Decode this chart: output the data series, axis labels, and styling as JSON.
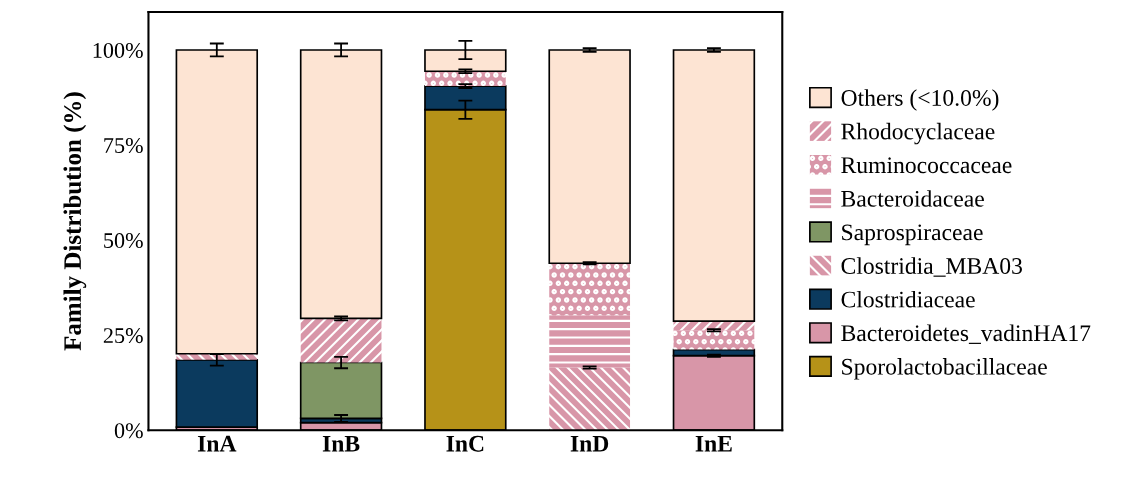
{
  "chart_data": {
    "type": "bar",
    "stacked": true,
    "ylabel": "Family Distribution (%)",
    "categories": [
      "InA",
      "InB",
      "InC",
      "InD",
      "InE"
    ],
    "ylim": [
      0,
      110
    ],
    "yticks": [
      {
        "value": 0,
        "label": "0%"
      },
      {
        "value": 25,
        "label": "25%"
      },
      {
        "value": 50,
        "label": "50%"
      },
      {
        "value": 75,
        "label": "75%"
      },
      {
        "value": 100,
        "label": "100%"
      }
    ],
    "grid": false,
    "legend": "right",
    "series": [
      {
        "name": "Sporolactobacillaceae",
        "color": "#b69218",
        "values": [
          null,
          null,
          84.3,
          null,
          null
        ],
        "errors": [
          null,
          null,
          2.4,
          null,
          null
        ]
      },
      {
        "name": "Bacteroidetes_vadinHA17",
        "color": "#d896a8",
        "values": [
          0.8,
          2.0,
          null,
          null,
          19.6
        ],
        "errors": [
          null,
          null,
          null,
          null,
          0.3
        ]
      },
      {
        "name": "Clostridiaceae",
        "color": "#0b3a5e",
        "values": [
          17.7,
          1.1,
          6.2,
          null,
          1.6
        ],
        "errors": [
          1.5,
          0.9,
          0.5,
          null,
          null
        ]
      },
      {
        "name": "Clostridia_MBA03",
        "color": "#d896a8",
        "values": [
          1.6,
          null,
          null,
          16.5,
          null
        ],
        "errors": [
          null,
          null,
          null,
          0.3,
          null
        ]
      },
      {
        "name": "Saprospiraceae",
        "color": "#7f9664",
        "values": [
          null,
          14.7,
          null,
          null,
          null
        ],
        "errors": [
          null,
          1.5,
          null,
          null,
          null
        ]
      },
      {
        "name": "Bacteroidaceae",
        "color": "#d896a8",
        "values": [
          null,
          null,
          null,
          13.7,
          null
        ]
      },
      {
        "name": "Ruminococcaceae",
        "color": "#d896a8",
        "values": [
          null,
          null,
          3.9,
          13.7,
          5.1
        ],
        "errors": [
          null,
          null,
          0.5,
          0.3,
          0.3
        ]
      },
      {
        "name": "Rhodocyclaceae",
        "color": "#d896a8",
        "values": [
          null,
          11.6,
          null,
          null,
          2.4
        ],
        "errors": [
          null,
          0.5,
          null,
          null,
          null
        ]
      },
      {
        "name": "Others (<10.0%)",
        "color": "#fde4d3",
        "values": [
          79.9,
          70.6,
          5.6,
          56.1,
          71.3
        ],
        "errors": [
          1.7,
          1.7,
          2.4,
          0.5,
          0.5
        ]
      }
    ]
  }
}
